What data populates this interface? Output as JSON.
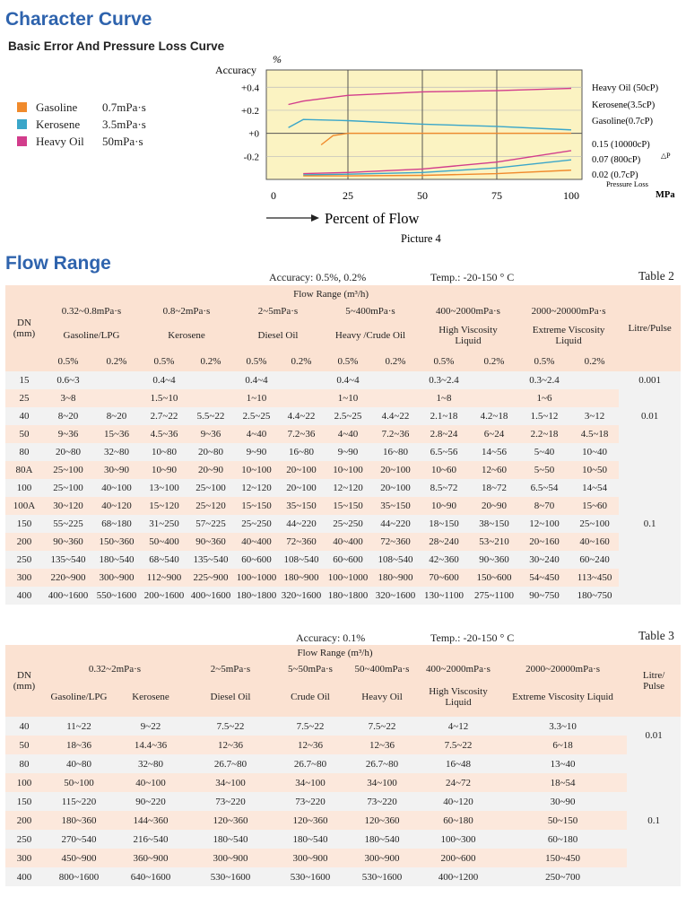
{
  "character_curve": {
    "title": "Character Curve",
    "subtitle": "Basic Error And Pressure Loss Curve",
    "legend": [
      {
        "color": "#f08a2c",
        "name": "Gasoline",
        "value": "0.7mPa·s"
      },
      {
        "color": "#3aa6c9",
        "name": "Kerosene",
        "value": "3.5mPa·s"
      },
      {
        "color": "#d23d8c",
        "name": "Heavy Oil",
        "value": "50mPa·s"
      }
    ],
    "accuracy_label": "Accuracy",
    "accuracy_unit": "%",
    "y_ticks": [
      "+0.4",
      "+0.2",
      "+0",
      "-0.2"
    ],
    "x_ticks": [
      "0",
      "25",
      "50",
      "75",
      "100"
    ],
    "right_labels": {
      "heavy": "Heavy Oil (50cP)",
      "kerosene": "Kerosene(3.5cP)",
      "gasoline": "Gasoline(0.7cP)",
      "p1": "0.15 (10000cP)",
      "p2": "0.07 (800cP)",
      "p3": "0.02 (0.7cP)",
      "delta_p": "△P",
      "pressure_loss": "Pressure Loss",
      "mpa": "MPa"
    },
    "x_axis_label": "Percent of Flow",
    "caption": "Picture 4"
  },
  "chart_data": {
    "type": "line",
    "title": "",
    "xlabel": "Percent of Flow",
    "ylabel": "Accuracy %",
    "xlim": [
      0,
      100
    ],
    "ylim": [
      -0.4,
      0.55
    ],
    "x_ticks": [
      0,
      25,
      50,
      75,
      100
    ],
    "y_ticks": [
      0.4,
      0.2,
      0,
      -0.2
    ],
    "series": [
      {
        "name": "Heavy Oil (50cP)",
        "color": "#d23d8c",
        "x": [
          5,
          10,
          25,
          50,
          75,
          100
        ],
        "y": [
          0.25,
          0.28,
          0.33,
          0.36,
          0.37,
          0.39
        ]
      },
      {
        "name": "Kerosene(3.5cP)",
        "color": "#3aa6c9",
        "x": [
          5,
          10,
          25,
          50,
          75,
          100
        ],
        "y": [
          0.05,
          0.12,
          0.11,
          0.08,
          0.06,
          0.03
        ]
      },
      {
        "name": "Gasoline(0.7cP)",
        "color": "#f08a2c",
        "x": [
          16,
          20,
          25,
          50,
          75,
          100
        ],
        "y": [
          -0.1,
          -0.02,
          0.0,
          0.0,
          0.0,
          0.0
        ]
      },
      {
        "name": "0.15 (10000cP)",
        "color": "#d23d8c",
        "x": [
          10,
          25,
          50,
          75,
          100
        ],
        "y": [
          -0.35,
          -0.34,
          -0.31,
          -0.25,
          -0.15
        ]
      },
      {
        "name": "0.07 (800cP)",
        "color": "#3aa6c9",
        "x": [
          10,
          25,
          50,
          75,
          100
        ],
        "y": [
          -0.36,
          -0.355,
          -0.34,
          -0.3,
          -0.23
        ]
      },
      {
        "name": "0.02 (0.7cP)",
        "color": "#f08a2c",
        "x": [
          10,
          25,
          50,
          75,
          100
        ],
        "y": [
          -0.37,
          -0.37,
          -0.365,
          -0.35,
          -0.32
        ]
      }
    ],
    "grid": true
  },
  "flow_range": {
    "title": "Flow Range",
    "table2": {
      "accuracy": "Accuracy: 0.5%, 0.2%",
      "temp": "Temp.: -20-150 ° C",
      "label": "Table 2",
      "flow_range_header": "Flow Range (m³/h)",
      "dn_header": "DN\n(mm)",
      "lp_header": "Litre/Pulse",
      "visc": [
        "0.32~0.8mPa·s",
        "0.8~2mPa·s",
        "2~5mPa·s",
        "5~400mPa·s",
        "400~2000mPa·s",
        "2000~20000mPa·s"
      ],
      "media": [
        "Gasoline/LPG",
        "Kerosene",
        "Diesel  Oil",
        "Heavy /Crude Oil",
        "High Viscosity\nLiquid",
        "Extreme Viscosity\nLiquid"
      ],
      "acc": [
        "0.5%",
        "0.2%",
        "0.5%",
        "0.2%",
        "0.5%",
        "0.2%",
        "0.5%",
        "0.2%",
        "0.5%",
        "0.2%",
        "0.5%",
        "0.2%"
      ],
      "rows": [
        [
          "15",
          "0.6~3",
          "",
          "0.4~4",
          "",
          "0.4~4",
          "",
          "0.4~4",
          "",
          "0.3~2.4",
          "",
          "0.3~2.4",
          ""
        ],
        [
          "25",
          "3~8",
          "",
          "1.5~10",
          "",
          "1~10",
          "",
          "1~10",
          "",
          "1~8",
          "",
          "1~6",
          ""
        ],
        [
          "40",
          "8~20",
          "8~20",
          "2.7~22",
          "5.5~22",
          "2.5~25",
          "4.4~22",
          "2.5~25",
          "4.4~22",
          "2.1~18",
          "4.2~18",
          "1.5~12",
          "3~12"
        ],
        [
          "50",
          "9~36",
          "15~36",
          "4.5~36",
          "9~36",
          "4~40",
          "7.2~36",
          "4~40",
          "7.2~36",
          "2.8~24",
          "6~24",
          "2.2~18",
          "4.5~18"
        ],
        [
          "80",
          "20~80",
          "32~80",
          "10~80",
          "20~80",
          "9~90",
          "16~80",
          "9~90",
          "16~80",
          "6.5~56",
          "14~56",
          "5~40",
          "10~40"
        ],
        [
          "80A",
          "25~100",
          "30~90",
          "10~90",
          "20~90",
          "10~100",
          "20~100",
          "10~100",
          "20~100",
          "10~60",
          "12~60",
          "5~50",
          "10~50"
        ],
        [
          "100",
          "25~100",
          "40~100",
          "13~100",
          "25~100",
          "12~120",
          "20~100",
          "12~120",
          "20~100",
          "8.5~72",
          "18~72",
          "6.5~54",
          "14~54"
        ],
        [
          "100A",
          "30~120",
          "40~120",
          "15~120",
          "25~120",
          "15~150",
          "35~150",
          "15~150",
          "35~150",
          "10~90",
          "20~90",
          "8~70",
          "15~60"
        ],
        [
          "150",
          "55~225",
          "68~180",
          "31~250",
          "57~225",
          "25~250",
          "44~220",
          "25~250",
          "44~220",
          "18~150",
          "38~150",
          "12~100",
          "25~100"
        ],
        [
          "200",
          "90~360",
          "150~360",
          "50~400",
          "90~360",
          "40~400",
          "72~360",
          "40~400",
          "72~360",
          "28~240",
          "53~210",
          "20~160",
          "40~160"
        ],
        [
          "250",
          "135~540",
          "180~540",
          "68~540",
          "135~540",
          "60~600",
          "108~540",
          "60~600",
          "108~540",
          "42~360",
          "90~360",
          "30~240",
          "60~240"
        ],
        [
          "300",
          "220~900",
          "300~900",
          "112~900",
          "225~900",
          "100~1000",
          "180~900",
          "100~1000",
          "180~900",
          "70~600",
          "150~600",
          "54~450",
          "113~450"
        ],
        [
          "400",
          "400~1600",
          "550~1600",
          "200~1600",
          "400~1600",
          "180~1800",
          "320~1600",
          "180~1800",
          "320~1600",
          "130~1100",
          "275~1100",
          "90~750",
          "180~750"
        ]
      ],
      "lp_values": [
        "0.001",
        "0.01",
        "0.1"
      ]
    },
    "table3": {
      "accuracy": "Accuracy: 0.1%",
      "temp": "Temp.: -20-150 ° C",
      "label": "Table 3",
      "flow_range_header": "Flow Range (m³/h)",
      "dn_header": "DN\n(mm)",
      "lp_header": "Litre/\nPulse",
      "visc": [
        "0.32~2mPa·s",
        "2~5mPa·s",
        "5~50mPa·s",
        "50~400mPa·s",
        "400~2000mPa·s",
        "2000~20000mPa·s"
      ],
      "media": [
        "Gasoline/LPG",
        "Kerosene",
        "Diesel Oil",
        "Crude  Oil",
        "Heavy Oil",
        "High Viscosity\nLiquid",
        "Extreme Viscosity Liquid"
      ],
      "rows": [
        [
          "40",
          "11~22",
          "9~22",
          "7.5~22",
          "7.5~22",
          "7.5~22",
          "4~12",
          "3.3~10"
        ],
        [
          "50",
          "18~36",
          "14.4~36",
          "12~36",
          "12~36",
          "12~36",
          "7.5~22",
          "6~18"
        ],
        [
          "80",
          "40~80",
          "32~80",
          "26.7~80",
          "26.7~80",
          "26.7~80",
          "16~48",
          "13~40"
        ],
        [
          "100",
          "50~100",
          "40~100",
          "34~100",
          "34~100",
          "34~100",
          "24~72",
          "18~54"
        ],
        [
          "150",
          "115~220",
          "90~220",
          "73~220",
          "73~220",
          "73~220",
          "40~120",
          "30~90"
        ],
        [
          "200",
          "180~360",
          "144~360",
          "120~360",
          "120~360",
          "120~360",
          "60~180",
          "50~150"
        ],
        [
          "250",
          "270~540",
          "216~540",
          "180~540",
          "180~540",
          "180~540",
          "100~300",
          "60~180"
        ],
        [
          "300",
          "450~900",
          "360~900",
          "300~900",
          "300~900",
          "300~900",
          "200~600",
          "150~450"
        ],
        [
          "400",
          "800~1600",
          "640~1600",
          "530~1600",
          "530~1600",
          "530~1600",
          "400~1200",
          "250~700"
        ]
      ],
      "lp_values": [
        "0.01",
        "0.1"
      ]
    }
  }
}
